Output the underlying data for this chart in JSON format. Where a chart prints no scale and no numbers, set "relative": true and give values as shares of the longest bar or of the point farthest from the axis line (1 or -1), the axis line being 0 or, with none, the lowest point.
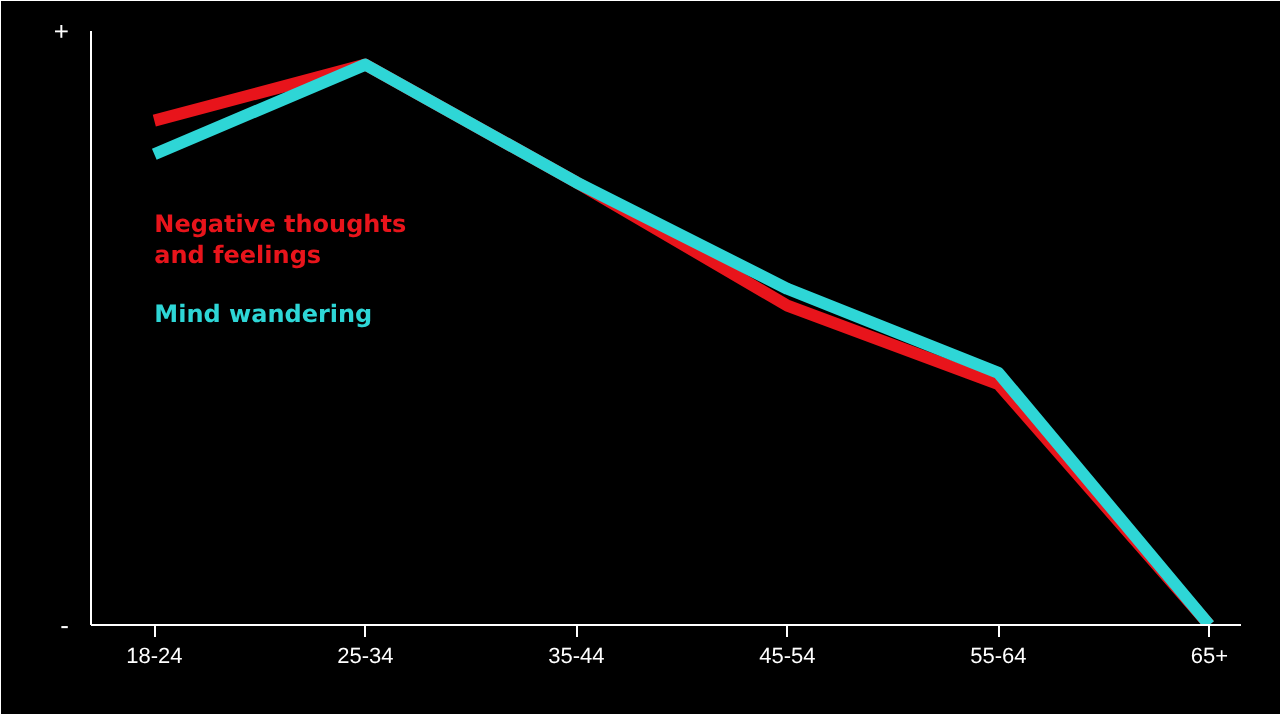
{
  "chart_data": {
    "type": "line",
    "relative": true,
    "categories": [
      "18-24",
      "25-34",
      "35-44",
      "45-54",
      "55-64",
      "65+"
    ],
    "series": [
      {
        "name": "Negative thoughts\nand feelings",
        "color": "#e8141b",
        "values": [
          0.9,
          1,
          0.79,
          0.57,
          0.43,
          0
        ]
      },
      {
        "name": "Mind wandering",
        "color": "#2ed6d6",
        "values": [
          0.84,
          1,
          0.79,
          0.6,
          0.45,
          0
        ]
      }
    ],
    "annotations": [
      "+",
      "-"
    ],
    "legend": "top left",
    "grid": false,
    "marker": "none",
    "line_style": "solid"
  }
}
